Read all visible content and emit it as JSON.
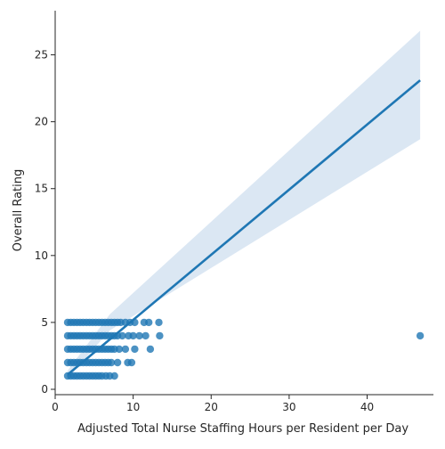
{
  "chart_data": {
    "type": "scatter",
    "title": "",
    "xlabel": "Adjusted Total Nurse Staffing Hours per Resident per Day",
    "ylabel": "Overall Rating",
    "xlim": [
      0,
      48.5
    ],
    "ylim": [
      -0.4,
      28.3
    ],
    "x_ticks": [
      0,
      10,
      20,
      30,
      40
    ],
    "y_ticks": [
      0,
      5,
      10,
      15,
      20,
      25
    ],
    "grid": false,
    "legend": "none",
    "point_color": "#1f77b4",
    "line_color": "#1f77b4",
    "band_color": "#dbe7f3",
    "points": [
      [
        1.6,
        1
      ],
      [
        2.0,
        1
      ],
      [
        2.4,
        1
      ],
      [
        2.8,
        1
      ],
      [
        3.2,
        1
      ],
      [
        3.6,
        1
      ],
      [
        4.0,
        1
      ],
      [
        4.4,
        1
      ],
      [
        4.8,
        1
      ],
      [
        5.2,
        1
      ],
      [
        5.6,
        1
      ],
      [
        6.0,
        1
      ],
      [
        6.5,
        1
      ],
      [
        7.0,
        1
      ],
      [
        7.6,
        1
      ],
      [
        1.6,
        2
      ],
      [
        2.0,
        2
      ],
      [
        2.4,
        2
      ],
      [
        2.8,
        2
      ],
      [
        3.2,
        2
      ],
      [
        3.6,
        2
      ],
      [
        4.0,
        2
      ],
      [
        4.4,
        2
      ],
      [
        4.8,
        2
      ],
      [
        5.2,
        2
      ],
      [
        5.6,
        2
      ],
      [
        6.0,
        2
      ],
      [
        6.4,
        2
      ],
      [
        6.8,
        2
      ],
      [
        7.2,
        2
      ],
      [
        8.0,
        2
      ],
      [
        9.3,
        2
      ],
      [
        9.8,
        2
      ],
      [
        1.6,
        3
      ],
      [
        2.0,
        3
      ],
      [
        2.4,
        3
      ],
      [
        2.8,
        3
      ],
      [
        3.2,
        3
      ],
      [
        3.6,
        3
      ],
      [
        4.0,
        3
      ],
      [
        4.4,
        3
      ],
      [
        4.8,
        3
      ],
      [
        5.2,
        3
      ],
      [
        5.6,
        3
      ],
      [
        6.0,
        3
      ],
      [
        6.4,
        3
      ],
      [
        6.8,
        3
      ],
      [
        7.2,
        3
      ],
      [
        7.6,
        3
      ],
      [
        8.2,
        3
      ],
      [
        9.0,
        3
      ],
      [
        10.2,
        3
      ],
      [
        12.2,
        3
      ],
      [
        1.6,
        4
      ],
      [
        2.0,
        4
      ],
      [
        2.4,
        4
      ],
      [
        2.8,
        4
      ],
      [
        3.2,
        4
      ],
      [
        3.6,
        4
      ],
      [
        4.0,
        4
      ],
      [
        4.4,
        4
      ],
      [
        4.8,
        4
      ],
      [
        5.2,
        4
      ],
      [
        5.6,
        4
      ],
      [
        6.0,
        4
      ],
      [
        6.4,
        4
      ],
      [
        6.8,
        4
      ],
      [
        7.2,
        4
      ],
      [
        7.6,
        4
      ],
      [
        8.0,
        4
      ],
      [
        8.6,
        4
      ],
      [
        9.4,
        4
      ],
      [
        10.0,
        4
      ],
      [
        10.8,
        4
      ],
      [
        11.6,
        4
      ],
      [
        13.4,
        4
      ],
      [
        46.8,
        4
      ],
      [
        1.6,
        5
      ],
      [
        2.0,
        5
      ],
      [
        2.4,
        5
      ],
      [
        2.8,
        5
      ],
      [
        3.2,
        5
      ],
      [
        3.6,
        5
      ],
      [
        4.0,
        5
      ],
      [
        4.4,
        5
      ],
      [
        4.8,
        5
      ],
      [
        5.2,
        5
      ],
      [
        5.6,
        5
      ],
      [
        6.0,
        5
      ],
      [
        6.4,
        5
      ],
      [
        6.8,
        5
      ],
      [
        7.2,
        5
      ],
      [
        7.6,
        5
      ],
      [
        8.0,
        5
      ],
      [
        8.4,
        5
      ],
      [
        9.0,
        5
      ],
      [
        9.6,
        5
      ],
      [
        10.2,
        5
      ],
      [
        11.4,
        5
      ],
      [
        12.0,
        5
      ],
      [
        13.3,
        5
      ]
    ],
    "regression": {
      "x": [
        1.6,
        46.8
      ],
      "y": [
        1.1,
        23.1
      ]
    },
    "ci_band": {
      "x": [
        1.6,
        7.0,
        46.8
      ],
      "upper": [
        1.4,
        5.6,
        26.8
      ],
      "lower": [
        0.8,
        4.4,
        18.7
      ]
    }
  }
}
